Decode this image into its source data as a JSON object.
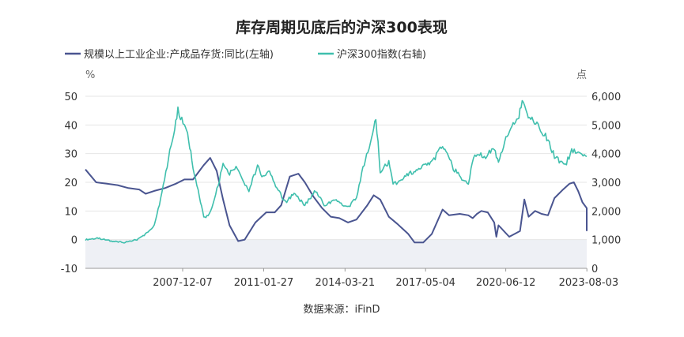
{
  "chart_data": {
    "type": "line",
    "title": "库存周期见底后的沪深300表现",
    "source": "数据来源：iFinD",
    "left_unit": "%",
    "right_unit": "点",
    "left_ylim": [
      -10,
      50
    ],
    "left_ticks": [
      "50",
      "40",
      "30",
      "20",
      "10",
      "0",
      "-10"
    ],
    "right_ylim": [
      0,
      6000
    ],
    "right_ticks": [
      "6,000",
      "5,000",
      "4,000",
      "3,000",
      "2,000",
      "1,000",
      "0"
    ],
    "x_range": [
      "2004-03",
      "2023-08"
    ],
    "x_ticks": [
      "2007-12-07",
      "2011-01-27",
      "2014-03-21",
      "2017-05-04",
      "2020-06-12",
      "2023-08-03"
    ],
    "grid": true,
    "legend_position": "top-left",
    "shade_below_zero": true,
    "series": [
      {
        "name": "规模以上工业企业:产成品存货:同比(左轴)",
        "axis": "left",
        "color": "#4a5590",
        "points": [
          [
            "2004-03",
            24.5
          ],
          [
            "2004-08",
            20
          ],
          [
            "2005-01",
            19.5
          ],
          [
            "2005-06",
            19
          ],
          [
            "2005-11",
            18
          ],
          [
            "2006-04",
            17.5
          ],
          [
            "2006-07",
            16
          ],
          [
            "2006-11",
            17
          ],
          [
            "2007-04",
            18
          ],
          [
            "2007-09",
            19.5
          ],
          [
            "2008-01",
            21
          ],
          [
            "2008-05",
            21
          ],
          [
            "2008-07",
            23
          ],
          [
            "2008-10",
            26
          ],
          [
            "2009-01",
            28.5
          ],
          [
            "2009-04",
            24
          ],
          [
            "2009-07",
            14
          ],
          [
            "2009-10",
            5
          ],
          [
            "2010-02",
            -0.5
          ],
          [
            "2010-05",
            0
          ],
          [
            "2010-10",
            6
          ],
          [
            "2011-03",
            9.5
          ],
          [
            "2011-07",
            9.5
          ],
          [
            "2011-10",
            12
          ],
          [
            "2012-02",
            22
          ],
          [
            "2012-06",
            23
          ],
          [
            "2012-09",
            20
          ],
          [
            "2013-01",
            15
          ],
          [
            "2013-05",
            11
          ],
          [
            "2013-09",
            8
          ],
          [
            "2014-01",
            7.5
          ],
          [
            "2014-05",
            6
          ],
          [
            "2014-09",
            7
          ],
          [
            "2015-02",
            12
          ],
          [
            "2015-05",
            15.5
          ],
          [
            "2015-08",
            14
          ],
          [
            "2015-12",
            8
          ],
          [
            "2016-04",
            5.5
          ],
          [
            "2016-09",
            2
          ],
          [
            "2016-12",
            -1
          ],
          [
            "2017-04",
            -1
          ],
          [
            "2017-08",
            2
          ],
          [
            "2018-01",
            10.5
          ],
          [
            "2018-04",
            8.5
          ],
          [
            "2018-09",
            9
          ],
          [
            "2019-01",
            8.5
          ],
          [
            "2019-03",
            7.5
          ],
          [
            "2019-05",
            9
          ],
          [
            "2019-07",
            10
          ],
          [
            "2019-10",
            9.5
          ],
          [
            "2020-01",
            6
          ],
          [
            "2020-02",
            1
          ],
          [
            "2020-03",
            5
          ],
          [
            "2020-08",
            1
          ],
          [
            "2021-01",
            3
          ],
          [
            "2021-03",
            14
          ],
          [
            "2021-05",
            8
          ],
          [
            "2021-08",
            10
          ],
          [
            "2021-11",
            9
          ],
          [
            "2022-02",
            8.5
          ],
          [
            "2022-05",
            14.5
          ],
          [
            "2022-09",
            17.5
          ],
          [
            "2022-12",
            19.5
          ],
          [
            "2023-02",
            20
          ],
          [
            "2023-04",
            17
          ],
          [
            "2023-06",
            13
          ],
          [
            "2023-08",
            11
          ],
          [
            "2023-08",
            3
          ]
        ]
      },
      {
        "name": "沪深300指数(右轴)",
        "axis": "right",
        "color": "#3fbfad",
        "points": [
          [
            "2004-03",
            1000
          ],
          [
            "2004-09",
            1050
          ],
          [
            "2005-03",
            950
          ],
          [
            "2005-09",
            900
          ],
          [
            "2006-03",
            1000
          ],
          [
            "2006-08",
            1250
          ],
          [
            "2006-11",
            1500
          ],
          [
            "2007-02",
            2400
          ],
          [
            "2007-05",
            3600
          ],
          [
            "2007-08",
            4700
          ],
          [
            "2007-10",
            5500
          ],
          [
            "2008-01",
            5000
          ],
          [
            "2008-03",
            4500
          ],
          [
            "2008-05",
            3500
          ],
          [
            "2008-08",
            2500
          ],
          [
            "2008-10",
            1800
          ],
          [
            "2008-12",
            1800
          ],
          [
            "2009-03",
            2400
          ],
          [
            "2009-07",
            3600
          ],
          [
            "2009-10",
            3300
          ],
          [
            "2010-01",
            3500
          ],
          [
            "2010-04",
            3100
          ],
          [
            "2010-07",
            2700
          ],
          [
            "2010-11",
            3600
          ],
          [
            "2011-01",
            3200
          ],
          [
            "2011-04",
            3400
          ],
          [
            "2011-08",
            2800
          ],
          [
            "2011-12",
            2300
          ],
          [
            "2012-04",
            2600
          ],
          [
            "2012-09",
            2200
          ],
          [
            "2013-02",
            2700
          ],
          [
            "2013-06",
            2200
          ],
          [
            "2013-11",
            2400
          ],
          [
            "2014-03",
            2200
          ],
          [
            "2014-06",
            2200
          ],
          [
            "2014-09",
            2500
          ],
          [
            "2014-12",
            3500
          ],
          [
            "2015-04",
            4500
          ],
          [
            "2015-06",
            5300
          ],
          [
            "2015-08",
            3400
          ],
          [
            "2015-12",
            3700
          ],
          [
            "2016-02",
            2900
          ],
          [
            "2016-09",
            3300
          ],
          [
            "2017-03",
            3500
          ],
          [
            "2017-09",
            3800
          ],
          [
            "2018-01",
            4300
          ],
          [
            "2018-06",
            3500
          ],
          [
            "2018-10",
            3100
          ],
          [
            "2019-01",
            3000
          ],
          [
            "2019-04",
            4000
          ],
          [
            "2019-09",
            3900
          ],
          [
            "2020-01",
            4200
          ],
          [
            "2020-03",
            3700
          ],
          [
            "2020-07",
            4700
          ],
          [
            "2020-12",
            5200
          ],
          [
            "2021-02",
            5800
          ],
          [
            "2021-06",
            5200
          ],
          [
            "2021-10",
            4900
          ],
          [
            "2022-02",
            4500
          ],
          [
            "2022-05",
            3900
          ],
          [
            "2022-10",
            3600
          ],
          [
            "2023-01",
            4100
          ],
          [
            "2023-04",
            4000
          ],
          [
            "2023-08",
            3900
          ]
        ]
      }
    ]
  }
}
